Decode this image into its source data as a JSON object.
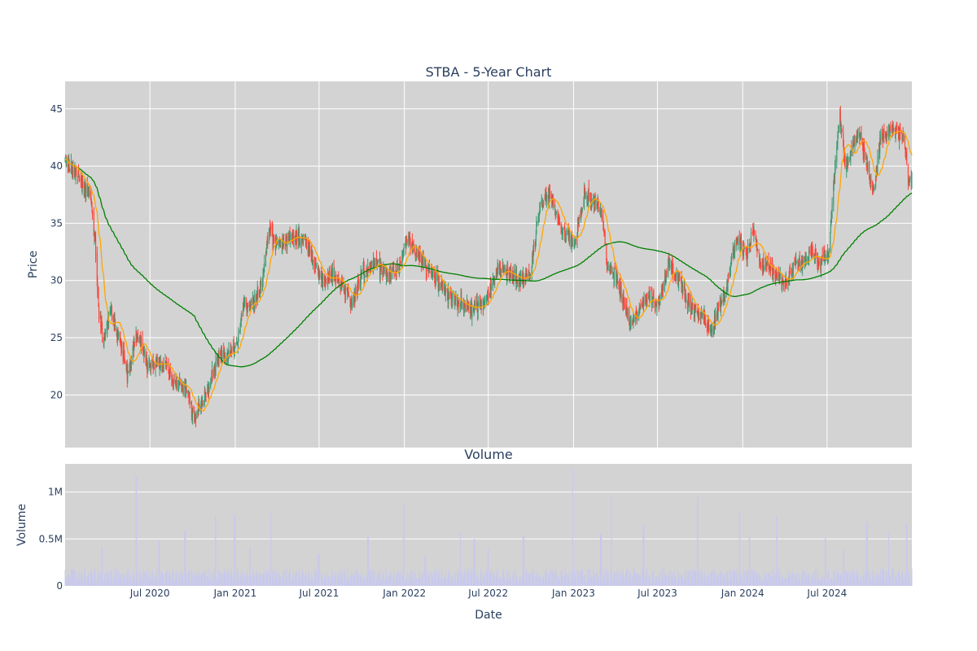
{
  "chart_data": {
    "type": "candlestick",
    "title": "STBA - 5-Year Chart",
    "price_panel": {
      "ylabel": "Price",
      "y_ticks": [
        20,
        25,
        30,
        35,
        40,
        45
      ],
      "ylim": [
        15.4,
        47.4
      ],
      "background": "#d3d3d3",
      "grid": true,
      "candle_colors": {
        "up": "#3d9970",
        "down": "#ff4136"
      },
      "ma_short_color": "#ffa500",
      "ma_long_color": "#008000",
      "close_waypoints": [
        [
          "2019-12-31",
          40.5
        ],
        [
          "2020-01-20",
          39.5
        ],
        [
          "2020-02-10",
          38.0
        ],
        [
          "2020-02-24",
          37.5
        ],
        [
          "2020-03-05",
          33.0
        ],
        [
          "2020-03-13",
          27.0
        ],
        [
          "2020-03-23",
          25.0
        ],
        [
          "2020-04-05",
          27.5
        ],
        [
          "2020-04-20",
          25.5
        ],
        [
          "2020-05-01",
          24.0
        ],
        [
          "2020-05-14",
          21.5
        ],
        [
          "2020-05-28",
          24.5
        ],
        [
          "2020-06-10",
          25.0
        ],
        [
          "2020-06-25",
          22.5
        ],
        [
          "2020-07-10",
          22.5
        ],
        [
          "2020-08-01",
          23.0
        ],
        [
          "2020-08-20",
          21.0
        ],
        [
          "2020-09-10",
          21.0
        ],
        [
          "2020-09-25",
          19.5
        ],
        [
          "2020-10-05",
          17.5
        ],
        [
          "2020-10-20",
          19.5
        ],
        [
          "2020-11-01",
          20.0
        ],
        [
          "2020-11-09",
          21.5
        ],
        [
          "2020-11-25",
          23.5
        ],
        [
          "2020-12-15",
          23.5
        ],
        [
          "2021-01-05",
          24.5
        ],
        [
          "2021-01-20",
          28.0
        ],
        [
          "2021-02-10",
          28.0
        ],
        [
          "2021-03-01",
          30.0
        ],
        [
          "2021-03-15",
          34.5
        ],
        [
          "2021-04-01",
          33.0
        ],
        [
          "2021-04-20",
          33.5
        ],
        [
          "2021-05-10",
          34.0
        ],
        [
          "2021-06-01",
          33.5
        ],
        [
          "2021-06-20",
          31.5
        ],
        [
          "2021-07-10",
          30.0
        ],
        [
          "2021-08-01",
          30.5
        ],
        [
          "2021-08-20",
          29.5
        ],
        [
          "2021-09-10",
          28.0
        ],
        [
          "2021-10-01",
          30.5
        ],
        [
          "2021-11-01",
          31.5
        ],
        [
          "2021-11-25",
          30.5
        ],
        [
          "2021-12-15",
          31.0
        ],
        [
          "2022-01-10",
          33.5
        ],
        [
          "2022-02-01",
          32.0
        ],
        [
          "2022-03-01",
          30.5
        ],
        [
          "2022-04-01",
          29.0
        ],
        [
          "2022-05-01",
          28.0
        ],
        [
          "2022-06-01",
          27.5
        ],
        [
          "2022-06-25",
          28.0
        ],
        [
          "2022-07-20",
          31.0
        ],
        [
          "2022-08-15",
          30.5
        ],
        [
          "2022-09-10",
          30.0
        ],
        [
          "2022-10-01",
          31.0
        ],
        [
          "2022-10-20",
          36.5
        ],
        [
          "2022-11-10",
          37.5
        ],
        [
          "2022-11-25",
          36.0
        ],
        [
          "2022-12-15",
          34.0
        ],
        [
          "2023-01-05",
          33.5
        ],
        [
          "2023-01-25",
          37.5
        ],
        [
          "2023-02-15",
          37.0
        ],
        [
          "2023-03-05",
          35.5
        ],
        [
          "2023-03-15",
          31.0
        ],
        [
          "2023-04-01",
          30.5
        ],
        [
          "2023-04-20",
          28.0
        ],
        [
          "2023-05-05",
          26.0
        ],
        [
          "2023-05-25",
          27.5
        ],
        [
          "2023-06-15",
          28.5
        ],
        [
          "2023-07-05",
          28.0
        ],
        [
          "2023-07-25",
          31.5
        ],
        [
          "2023-08-10",
          30.5
        ],
        [
          "2023-08-25",
          29.0
        ],
        [
          "2023-09-15",
          27.5
        ],
        [
          "2023-10-05",
          27.0
        ],
        [
          "2023-10-25",
          25.5
        ],
        [
          "2023-11-10",
          27.5
        ],
        [
          "2023-11-25",
          28.5
        ],
        [
          "2023-12-10",
          32.5
        ],
        [
          "2023-12-25",
          33.5
        ],
        [
          "2024-01-10",
          32.0
        ],
        [
          "2024-01-25",
          34.5
        ],
        [
          "2024-02-10",
          31.0
        ],
        [
          "2024-02-25",
          31.5
        ],
        [
          "2024-03-15",
          30.5
        ],
        [
          "2024-04-05",
          30.0
        ],
        [
          "2024-04-25",
          31.5
        ],
        [
          "2024-05-10",
          31.5
        ],
        [
          "2024-05-28",
          32.5
        ],
        [
          "2024-06-15",
          31.5
        ],
        [
          "2024-07-05",
          32.5
        ],
        [
          "2024-07-15",
          38.5
        ],
        [
          "2024-07-28",
          44.5
        ],
        [
          "2024-08-10",
          40.0
        ],
        [
          "2024-08-25",
          41.5
        ],
        [
          "2024-09-10",
          43.0
        ],
        [
          "2024-09-25",
          40.0
        ],
        [
          "2024-10-10",
          38.0
        ],
        [
          "2024-10-25",
          42.5
        ],
        [
          "2024-11-10",
          43.0
        ],
        [
          "2024-11-25",
          43.0
        ],
        [
          "2024-12-15",
          42.5
        ],
        [
          "2024-12-22",
          39.0
        ],
        [
          "2024-12-31",
          38.5
        ]
      ]
    },
    "volume_panel": {
      "title": "Volume",
      "ylabel": "Volume",
      "y_ticks": [
        0,
        500000,
        1000000
      ],
      "y_tick_labels": [
        "0",
        "0.5M",
        "1M"
      ],
      "ylim": [
        0,
        1300000
      ],
      "bar_color": "#c8c8ee",
      "baseline_volume": 110000,
      "spikes": [
        [
          "2020-03-20",
          410000
        ],
        [
          "2020-06-01",
          1170000
        ],
        [
          "2020-07-20",
          480000
        ],
        [
          "2020-09-15",
          590000
        ],
        [
          "2020-11-20",
          740000
        ],
        [
          "2020-12-31",
          760000
        ],
        [
          "2021-02-01",
          410000
        ],
        [
          "2021-03-20",
          780000
        ],
        [
          "2021-06-30",
          340000
        ],
        [
          "2021-10-15",
          540000
        ],
        [
          "2021-12-31",
          870000
        ],
        [
          "2022-02-15",
          320000
        ],
        [
          "2022-05-01",
          560000
        ],
        [
          "2022-06-01",
          500000
        ],
        [
          "2022-07-01",
          390000
        ],
        [
          "2022-09-15",
          530000
        ],
        [
          "2022-12-31",
          1250000
        ],
        [
          "2023-03-01",
          550000
        ],
        [
          "2023-03-25",
          960000
        ],
        [
          "2023-06-01",
          650000
        ],
        [
          "2023-09-25",
          950000
        ],
        [
          "2023-12-25",
          790000
        ],
        [
          "2024-01-15",
          530000
        ],
        [
          "2024-03-15",
          750000
        ],
        [
          "2024-06-28",
          510000
        ],
        [
          "2024-08-05",
          390000
        ],
        [
          "2024-09-25",
          680000
        ],
        [
          "2024-11-10",
          560000
        ],
        [
          "2024-12-20",
          670000
        ]
      ]
    },
    "x_axis": {
      "xlabel": "Date",
      "range": [
        "2019-12-31",
        "2024-12-31"
      ],
      "tick_dates": [
        "2020-07-01",
        "2021-01-01",
        "2021-07-01",
        "2022-01-01",
        "2022-07-01",
        "2023-01-01",
        "2023-07-01",
        "2024-01-01",
        "2024-07-01"
      ],
      "tick_labels": [
        "Jul 2020",
        "Jan 2021",
        "Jul 2021",
        "Jan 2022",
        "Jul 2022",
        "Jan 2023",
        "Jul 2023",
        "Jan 2024",
        "Jul 2024"
      ]
    }
  }
}
